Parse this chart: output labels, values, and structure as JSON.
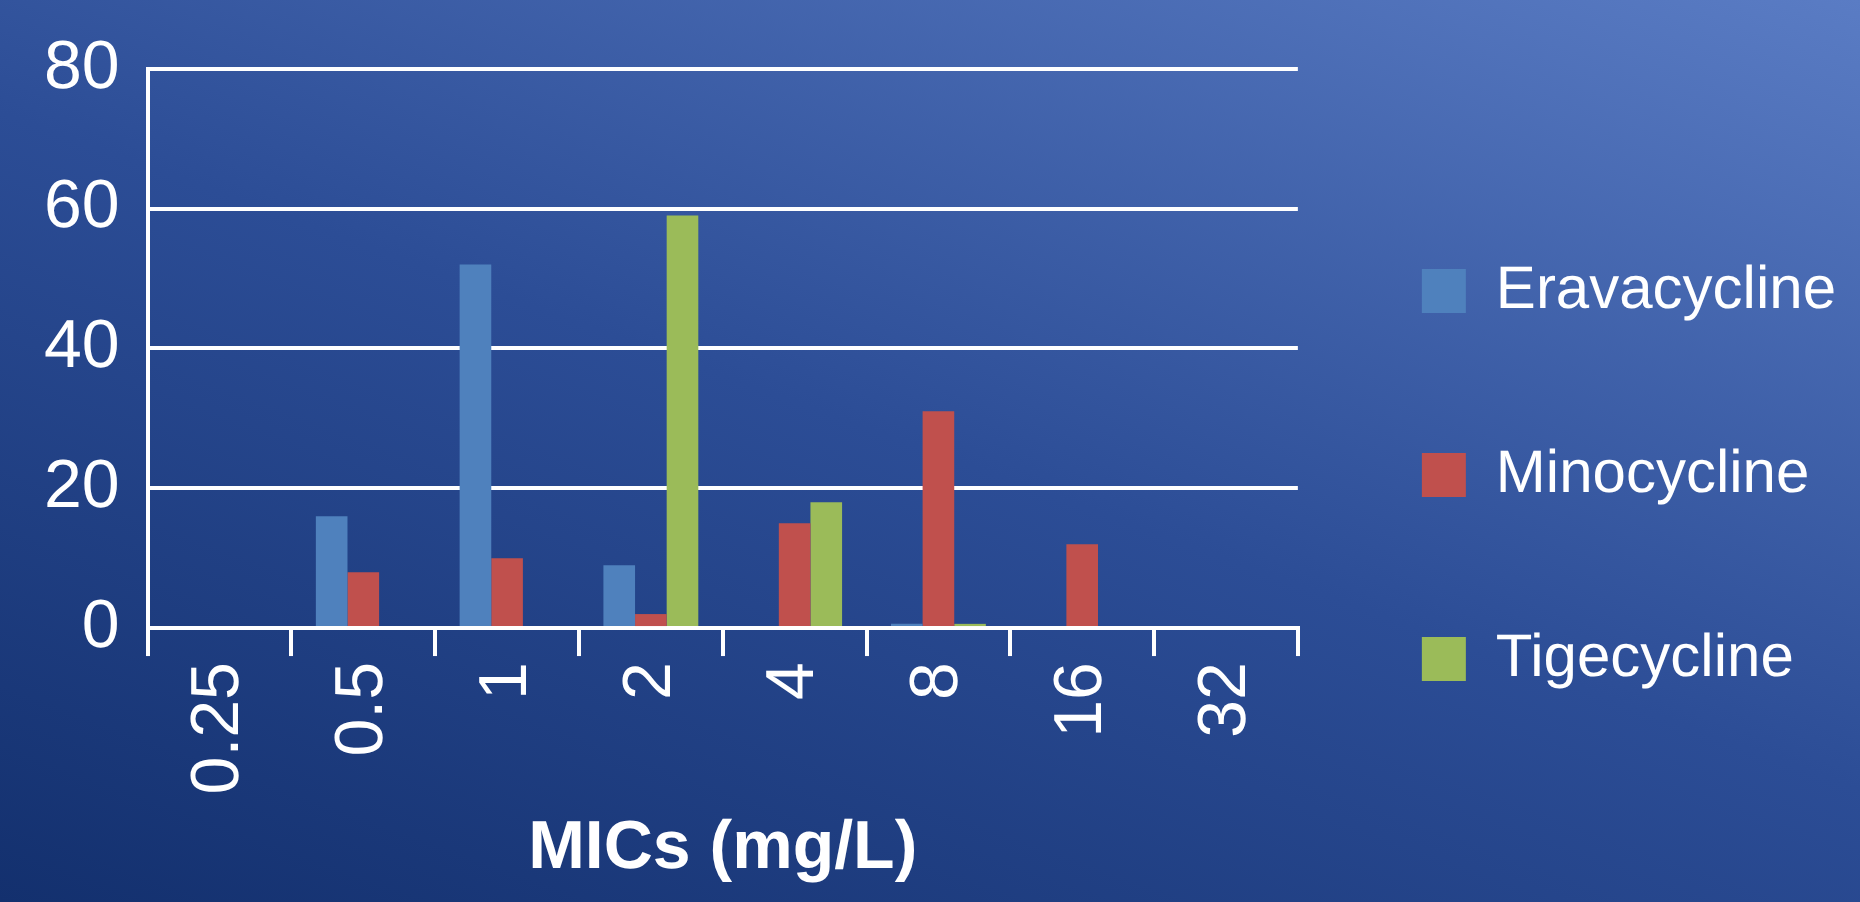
{
  "chart_data": {
    "type": "bar",
    "xlabel": "MICs (mg/L)",
    "categories": [
      "0.25",
      "0.5",
      "1",
      "2",
      "4",
      "8",
      "16",
      "32"
    ],
    "series": [
      {
        "name": "Eravacycline",
        "color": "#4f81bd",
        "values": [
          0,
          16,
          52,
          9,
          0,
          0.6,
          0,
          0
        ]
      },
      {
        "name": "Minocycline",
        "color": "#c0504d",
        "values": [
          0,
          8,
          10,
          2,
          15,
          31,
          12,
          0
        ]
      },
      {
        "name": "Tigecycline",
        "color": "#9bbb59",
        "values": [
          0,
          0,
          0,
          59,
          18,
          0.6,
          0,
          0
        ]
      }
    ],
    "ylim": [
      0,
      80
    ],
    "yticks": [
      0,
      20,
      40,
      60,
      80
    ],
    "grid": "y",
    "legend": "right"
  }
}
